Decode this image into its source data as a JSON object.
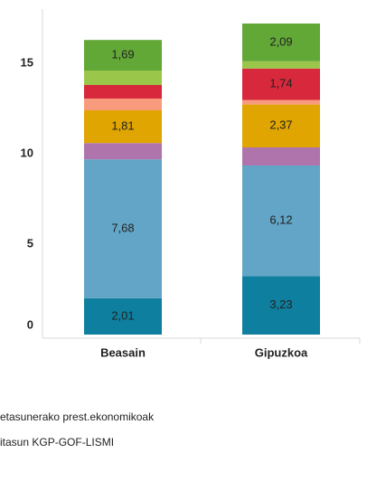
{
  "chart_data": {
    "type": "stacked-bar",
    "categories": [
      "Beasain",
      "Gipuzkoa"
    ],
    "series": [
      {
        "color": "#0f7f9f",
        "values": [
          2.01,
          3.23
        ],
        "value_labels": [
          "2,01",
          "3,23"
        ]
      },
      {
        "color": "#62a5c6",
        "values": [
          7.68,
          6.12
        ],
        "value_labels": [
          "7,68",
          "6,12"
        ]
      },
      {
        "color": "#b074ac",
        "values": [
          0.9,
          1.0
        ]
      },
      {
        "color": "#e0a500",
        "values": [
          1.81,
          2.37
        ],
        "value_labels": [
          "1,81",
          "2,37"
        ]
      },
      {
        "color": "#f89b7c",
        "values": [
          0.65,
          0.25
        ]
      },
      {
        "color": "#d7283c",
        "values": [
          0.75,
          1.74
        ],
        "value_labels": [
          null,
          "1,74"
        ]
      },
      {
        "color": "#9ac649",
        "values": [
          0.8,
          0.4
        ]
      },
      {
        "color": "#62a837",
        "values": [
          1.69,
          2.09
        ],
        "value_labels": [
          "1,69",
          "2,09"
        ]
      }
    ],
    "ylim": [
      0,
      18
    ],
    "yticks": [
      0,
      5,
      10,
      15
    ],
    "legend_texts": [
      "etasunerako prest.ekonomikoak",
      "itasun KGP-GOF-LISMI"
    ]
  }
}
